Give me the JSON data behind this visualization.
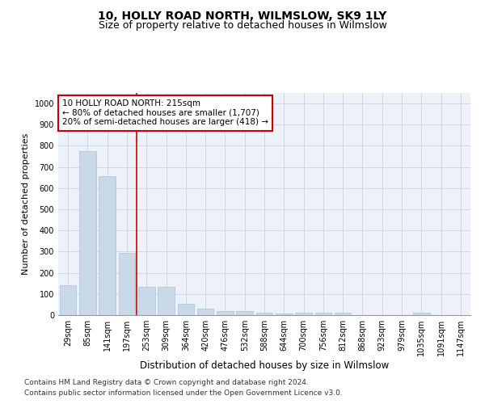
{
  "title": "10, HOLLY ROAD NORTH, WILMSLOW, SK9 1LY",
  "subtitle": "Size of property relative to detached houses in Wilmslow",
  "xlabel": "Distribution of detached houses by size in Wilmslow",
  "ylabel": "Number of detached properties",
  "categories": [
    "29sqm",
    "85sqm",
    "141sqm",
    "197sqm",
    "253sqm",
    "309sqm",
    "364sqm",
    "420sqm",
    "476sqm",
    "532sqm",
    "588sqm",
    "644sqm",
    "700sqm",
    "756sqm",
    "812sqm",
    "868sqm",
    "923sqm",
    "979sqm",
    "1035sqm",
    "1091sqm",
    "1147sqm"
  ],
  "values": [
    140,
    775,
    655,
    295,
    135,
    135,
    55,
    30,
    18,
    18,
    10,
    7,
    10,
    10,
    10,
    0,
    0,
    0,
    10,
    0,
    0
  ],
  "bar_color": "#c9d9e8",
  "bar_edge_color": "#a8c4d8",
  "vline_color": "#cc0000",
  "vline_x_index": 3.5,
  "annotation_text": "10 HOLLY ROAD NORTH: 215sqm\n← 80% of detached houses are smaller (1,707)\n20% of semi-detached houses are larger (418) →",
  "annotation_box_facecolor": "#ffffff",
  "annotation_box_edgecolor": "#cc0000",
  "ylim": [
    0,
    1050
  ],
  "yticks": [
    0,
    100,
    200,
    300,
    400,
    500,
    600,
    700,
    800,
    900,
    1000
  ],
  "footnote1": "Contains HM Land Registry data © Crown copyright and database right 2024.",
  "footnote2": "Contains public sector information licensed under the Open Government Licence v3.0.",
  "title_fontsize": 10,
  "subtitle_fontsize": 9,
  "xlabel_fontsize": 8.5,
  "ylabel_fontsize": 8,
  "tick_fontsize": 7,
  "annotation_fontsize": 7.5,
  "footnote_fontsize": 6.5,
  "grid_color": "#c8d4e8",
  "bg_color": "#edf1f8"
}
